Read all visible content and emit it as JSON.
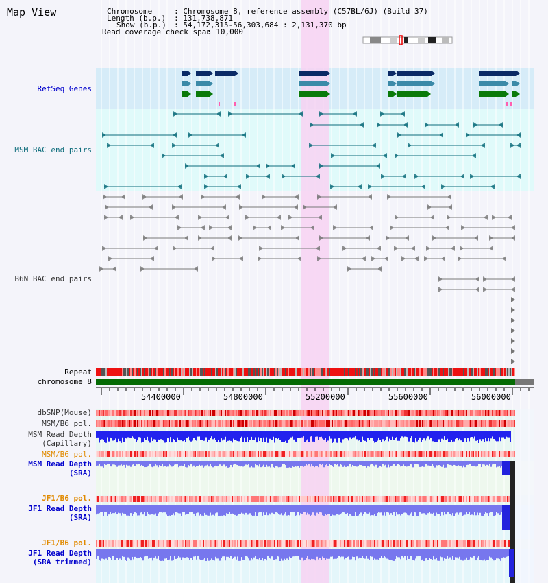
{
  "app": {
    "title": "Map View"
  },
  "info": {
    "chromosome_key": "Chromosome",
    "chromosome_val": ": Chromosome 8, reference assembly (C57BL/6J) (Build 37)",
    "length_key": "Length (b.p.)",
    "length_val": ": 131,738,871",
    "show_key": "Show (b.p.)",
    "show_val": ": 54,172,315-56,303,684 : 2,131,370 bp",
    "coverage_key": "Read coverage check span",
    "coverage_val": ": 10,000"
  },
  "tracks": {
    "refseq_genes": "RefSeq Genes",
    "msm_bac": "MSM BAC end pairs",
    "b6n_bac": "B6N BAC end pairs",
    "repeat": "Repeat",
    "chromosome": "chromosome 8",
    "dbsnp_mouse": "dbSNP(Mouse)",
    "msm_b6_pol_1": "MSM/B6 pol.",
    "msm_read_depth_cap_1": "MSM Read Depth",
    "msm_read_depth_cap_2": "(Capillary)",
    "msm_b6_pol_2": "MSM/B6 pol.",
    "msm_read_depth_sra_1": "MSM Read Depth",
    "msm_read_depth_sra_2": "(SRA)",
    "jf1_b6_pol_1": "JF1/B6 pol.",
    "jf1_read_depth_sra_1": "JF1 Read Depth",
    "jf1_read_depth_sra_2": "(SRA)",
    "jf1_b6_pol_2": "JF1/B6 pol.",
    "jf1_read_depth_trim_1": "JF1 Read Depth",
    "jf1_read_depth_trim_2": "(SRA trimmed)"
  },
  "axis": {
    "ticks": [
      "54400000",
      "54800000",
      "55200000",
      "55600000",
      "56000000"
    ]
  },
  "colors": {
    "highlight": "#f7d2f2",
    "refseq_bg": "#d6ecf8",
    "msm_bg": "#e0fafa",
    "b6n_bg": "#f4f4fa",
    "navy": "#0a2a66",
    "steel": "#3b8aa8",
    "green": "#0a7a0a",
    "teal_feat": "#0b6b7a",
    "gray_feat": "#777777",
    "chrom_green": "#056b05",
    "depth_blue": "#2222ee",
    "depth_light": "#7777ee"
  }
}
